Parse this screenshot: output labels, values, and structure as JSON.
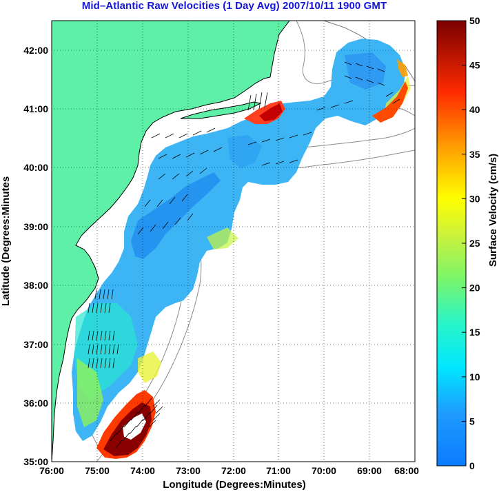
{
  "title": "Mid–Atlantic Raw Velocities (1 Day Avg) 2007/10/11 1900 GMT",
  "axes": {
    "xlabel": "Longitude (Degrees:Minutes)",
    "ylabel": "Latitude (Degrees:Minutes",
    "x_ticks": [
      "76:00",
      "75:00",
      "74:00",
      "73:00",
      "72:00",
      "71:00",
      "70:00",
      "69:00",
      "68:00"
    ],
    "y_ticks": [
      "42:00",
      "41:00",
      "40:00",
      "39:00",
      "38:00",
      "37:00",
      "36:00",
      "35:00"
    ],
    "xlim": [
      -76,
      -68
    ],
    "ylim": [
      35,
      42.5
    ],
    "grid": "dotted"
  },
  "colorbar": {
    "label": "Surface Velocity (cm/s)",
    "ticks": [
      "0",
      "5",
      "10",
      "15",
      "20",
      "25",
      "30",
      "35",
      "40",
      "45",
      "50"
    ],
    "range": [
      0,
      50
    ],
    "colormap": "jet"
  },
  "colors": {
    "land": "#5ef0a6",
    "title": "#1515d8",
    "coast": "#000000",
    "bathymetry": "#888888"
  }
}
